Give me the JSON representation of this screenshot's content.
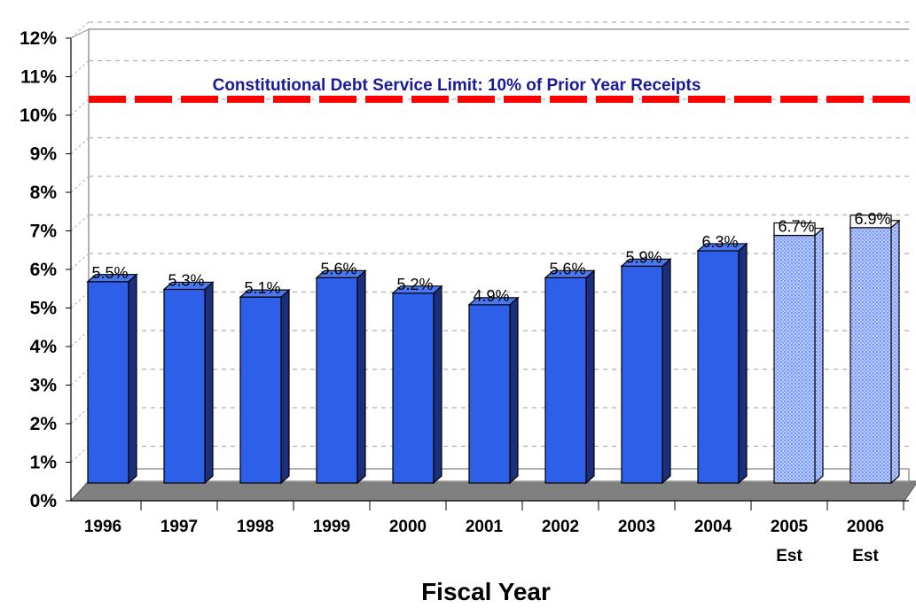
{
  "chart_data": {
    "type": "bar",
    "xlabel": "Fiscal Year",
    "ylabel": "",
    "ylim": [
      0,
      12
    ],
    "yticks": [
      "0%",
      "1%",
      "2%",
      "3%",
      "4%",
      "5%",
      "6%",
      "7%",
      "8%",
      "9%",
      "10%",
      "11%",
      "12%"
    ],
    "categories": [
      {
        "line1": "1996",
        "line2": ""
      },
      {
        "line1": "1997",
        "line2": ""
      },
      {
        "line1": "1998",
        "line2": ""
      },
      {
        "line1": "1999",
        "line2": ""
      },
      {
        "line1": "2000",
        "line2": ""
      },
      {
        "line1": "2001",
        "line2": ""
      },
      {
        "line1": "2002",
        "line2": ""
      },
      {
        "line1": "2003",
        "line2": ""
      },
      {
        "line1": "2004",
        "line2": ""
      },
      {
        "line1": "2005",
        "line2": "Est"
      },
      {
        "line1": "2006",
        "line2": "Est"
      }
    ],
    "values": [
      5.5,
      5.3,
      5.1,
      5.6,
      5.2,
      4.9,
      5.6,
      5.9,
      6.3,
      6.7,
      6.9
    ],
    "value_labels": [
      "5.5%",
      "5.3%",
      "5.1%",
      "5.6%",
      "5.2%",
      "4.9%",
      "5.6%",
      "5.9%",
      "6.3%",
      "6.7%",
      "6.9%"
    ],
    "estimated": [
      false,
      false,
      false,
      false,
      false,
      false,
      false,
      false,
      false,
      true,
      true
    ],
    "reference_line": {
      "value": 10,
      "label": "Constitutional Debt Service Limit: 10% of Prior Year Receipts",
      "color": "#ff0000",
      "style": "dashed"
    },
    "grid": true,
    "colors": {
      "bar_front": "#2e5fe8",
      "bar_side": "#1c2f7a",
      "bar_top": "#4a78f0",
      "estimated_front": "#a9c0ff",
      "floor": "#808080",
      "gridline": "#b0b0b0",
      "reference_label": "#1a1a99"
    }
  }
}
